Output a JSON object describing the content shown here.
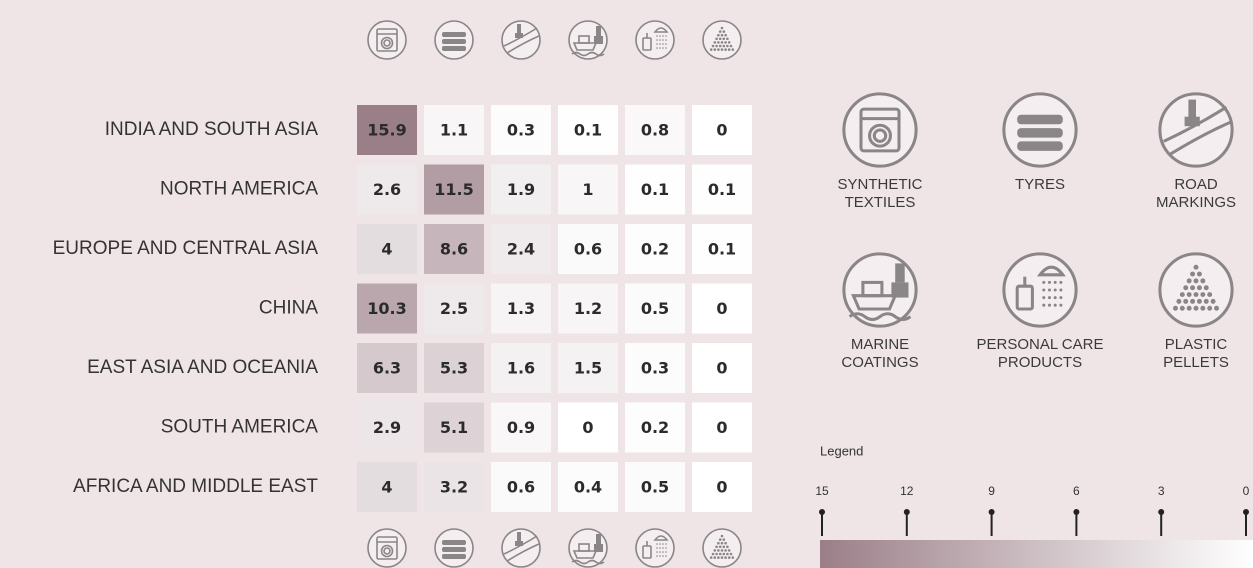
{
  "chart_data": {
    "type": "heatmap",
    "rows": [
      "INDIA AND SOUTH ASIA",
      "NORTH AMERICA",
      "EUROPE AND CENTRAL ASIA",
      "CHINA",
      "EAST ASIA AND OCEANIA",
      "SOUTH AMERICA",
      "AFRICA AND MIDDLE EAST"
    ],
    "columns": [
      "SYNTHETIC TEXTILES",
      "TYRES",
      "ROAD MARKINGS",
      "MARINE COATINGS",
      "PERSONAL CARE PRODUCTS",
      "PLASTIC PELLETS"
    ],
    "values": [
      [
        15.9,
        1.1,
        0.3,
        0.1,
        0.8,
        0
      ],
      [
        2.6,
        11.5,
        1.9,
        1,
        0.1,
        0.1
      ],
      [
        4,
        8.6,
        2.4,
        0.6,
        0.2,
        0.1
      ],
      [
        10.3,
        2.5,
        1.3,
        1.2,
        0.5,
        0
      ],
      [
        6.3,
        5.3,
        1.6,
        1.5,
        0.3,
        0
      ],
      [
        2.9,
        5.1,
        0.9,
        0,
        0.2,
        0
      ],
      [
        4,
        3.2,
        0.6,
        0.4,
        0.5,
        0
      ]
    ],
    "legend_title": "Legend",
    "clim": [
      15,
      0
    ],
    "cticks": [
      15,
      12,
      9,
      6,
      3,
      0
    ],
    "color_high": "#9b7f88",
    "color_low": "#ffffff"
  }
}
